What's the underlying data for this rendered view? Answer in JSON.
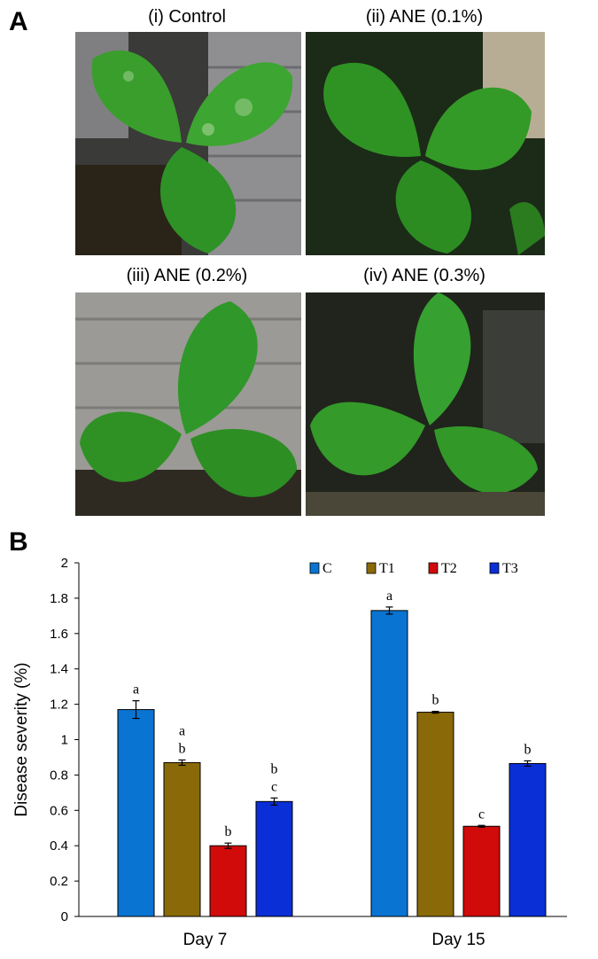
{
  "panel_a": {
    "letter": "A",
    "photos": [
      {
        "title": "(i) Control"
      },
      {
        "title": "(ii) ANE (0.1%)"
      },
      {
        "title": "(iii) ANE (0.2%)"
      },
      {
        "title": "(iv) ANE (0.3%)"
      }
    ]
  },
  "panel_b": {
    "letter": "B"
  },
  "colors": {
    "C": "#0a74d2",
    "T1": "#8a6a08",
    "T2": "#d10a0a",
    "T3": "#0a2fd6",
    "leaf": "#2f9a24"
  },
  "chart_data": {
    "type": "bar",
    "title": "",
    "xlabel": "",
    "ylabel": "Disease severity (%)",
    "ylim": [
      0,
      2
    ],
    "yticks": [
      "0",
      "0.2",
      "0.4",
      "0.6",
      "0.8",
      "1",
      "1.2",
      "1.4",
      "1.6",
      "1.8",
      "2"
    ],
    "categories": [
      "Day 7",
      "Day 15"
    ],
    "legend_position": "top-right",
    "series": [
      {
        "name": "C",
        "values": [
          1.17,
          1.73
        ],
        "errors": [
          0.05,
          0.02
        ],
        "letters": [
          "a",
          "a"
        ]
      },
      {
        "name": "T1",
        "values": [
          0.87,
          1.155
        ],
        "errors": [
          0.015,
          0.005
        ],
        "letters": [
          "a\nb",
          "b"
        ]
      },
      {
        "name": "T2",
        "values": [
          0.4,
          0.51
        ],
        "errors": [
          0.015,
          0.005
        ],
        "letters": [
          "b",
          "c"
        ]
      },
      {
        "name": "T3",
        "values": [
          0.65,
          0.865
        ],
        "errors": [
          0.02,
          0.015
        ],
        "letters": [
          "b\nc",
          "b"
        ]
      }
    ]
  }
}
